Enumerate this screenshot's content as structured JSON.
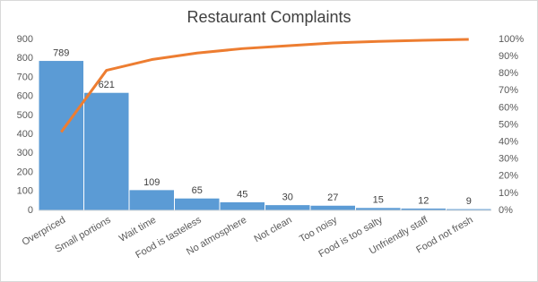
{
  "chart_data": {
    "type": "pareto",
    "title": "Restaurant Complaints",
    "categories": [
      "Overpriced",
      "Small portions",
      "Wait time",
      "Food is tasteless",
      "No atmosphere",
      "Not clean",
      "Too noisy",
      "Food is too salty",
      "Unfriendly staff",
      "Food not fresh"
    ],
    "series": [
      {
        "type": "bar",
        "color": "#5b9bd5",
        "values": [
          789,
          621,
          109,
          65,
          45,
          30,
          27,
          15,
          12,
          9
        ]
      },
      {
        "type": "line",
        "axis": "y2",
        "color": "#ed7d31",
        "values": [
          45.8,
          81.9,
          88.2,
          92.0,
          94.6,
          96.3,
          97.9,
          98.8,
          99.5,
          100
        ]
      }
    ],
    "ylim": [
      0,
      900
    ],
    "yticks": [
      0,
      100,
      200,
      300,
      400,
      500,
      600,
      700,
      800,
      900
    ],
    "y2lim": [
      0,
      100
    ],
    "y2ticks": [
      {
        "value": 0,
        "label": "0%"
      },
      {
        "value": 10,
        "label": "10%"
      },
      {
        "value": 20,
        "label": "20%"
      },
      {
        "value": 30,
        "label": "30%"
      },
      {
        "value": 40,
        "label": "40%"
      },
      {
        "value": 50,
        "label": "50%"
      },
      {
        "value": 60,
        "label": "60%"
      },
      {
        "value": 70,
        "label": "70%"
      },
      {
        "value": 80,
        "label": "80%"
      },
      {
        "value": 90,
        "label": "90%"
      },
      {
        "value": 100,
        "label": "100%"
      }
    ]
  }
}
